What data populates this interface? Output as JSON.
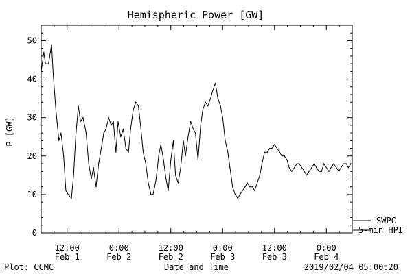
{
  "chart_data": {
    "type": "line",
    "title": "Hemispheric Power [GW]",
    "xlabel": "Date and Time",
    "ylabel": "P [GW]",
    "ylim": [
      0,
      54
    ],
    "yticks": [
      0,
      10,
      20,
      30,
      40,
      50
    ],
    "xlim_hours": [
      -18,
      54
    ],
    "xtick_hours": [
      -12,
      0,
      12,
      24,
      36,
      48
    ],
    "xtick_time_labels": [
      "12:00",
      "0:00",
      "12:00",
      "0:00",
      "12:00",
      "0:00"
    ],
    "xtick_date_labels": [
      "Feb 1",
      "Feb 2",
      "Feb 2",
      "Feb 3",
      "Feb 3",
      "Feb 4"
    ],
    "grid": false,
    "series": [
      {
        "name": "5-min HPI",
        "x_hours": [
          -18,
          -17.4,
          -17,
          -16.3,
          -15.6,
          -15.2,
          -14.6,
          -13.9,
          -13.4,
          -12.8,
          -12.3,
          -11.7,
          -11,
          -10.5,
          -10,
          -9.4,
          -8.9,
          -8.3,
          -7.6,
          -7,
          -6.4,
          -5.9,
          -5.3,
          -4.7,
          -4.1,
          -3.5,
          -3,
          -2.4,
          -1.8,
          -1.3,
          -0.7,
          -0.2,
          0.4,
          1,
          1.6,
          2.2,
          2.7,
          3.3,
          3.9,
          4.5,
          5.1,
          5.6,
          6.2,
          6.8,
          7.4,
          7.9,
          8.6,
          9.2,
          9.7,
          10.3,
          10.9,
          11.4,
          12,
          12.6,
          13.1,
          13.7,
          14.3,
          14.9,
          15.4,
          16,
          16.6,
          17.2,
          17.7,
          18.3,
          18.9,
          19.4,
          20,
          20.6,
          21.2,
          21.7,
          22.3,
          22.9,
          23.5,
          24,
          24.6,
          25.2,
          25.7,
          26.3,
          26.9,
          27.5,
          28,
          28.6,
          29.2,
          29.7,
          30.3,
          30.9,
          31.4,
          32,
          32.6,
          33.1,
          33.7,
          34.3,
          34.9,
          35.4,
          36,
          36.6,
          37.2,
          37.7,
          38.3,
          38.9,
          39.4,
          40,
          40.6,
          41.2,
          41.7,
          42.3,
          42.9,
          43.4,
          44,
          44.6,
          45.2,
          45.7,
          46.3,
          46.9,
          47.4,
          48,
          48.6,
          49.1,
          49.7,
          50.3,
          50.9,
          51.4,
          52,
          52.6,
          53.1,
          53.7
        ],
        "values": [
          42,
          47,
          44,
          44,
          49,
          41,
          32,
          24,
          26,
          20,
          11,
          10,
          9,
          15,
          25,
          33,
          29,
          30,
          26,
          18,
          14,
          17,
          12,
          18,
          22,
          26,
          27,
          30,
          28,
          29,
          21,
          29,
          25,
          27,
          22,
          21,
          27,
          32,
          34,
          33,
          27,
          21,
          18,
          13,
          10,
          10,
          14,
          20,
          23,
          19,
          14,
          11,
          19,
          24,
          15,
          13,
          17,
          24,
          20,
          25,
          29,
          27,
          26,
          19,
          28,
          32,
          34,
          33,
          35,
          37,
          39,
          35,
          33,
          30,
          24,
          21,
          17,
          12,
          10,
          9,
          10,
          11,
          12,
          13,
          12,
          12,
          11,
          13,
          15,
          18,
          21,
          21,
          22,
          22,
          23,
          22,
          21,
          20,
          20,
          19,
          17,
          16,
          17,
          18,
          18,
          17,
          16,
          15,
          16,
          17,
          18,
          17,
          16,
          16,
          18,
          17,
          16,
          17,
          18,
          17,
          16,
          17,
          18,
          18,
          17,
          18
        ]
      },
      {
        "name": "SWPC",
        "values": []
      }
    ]
  },
  "footer": {
    "plot_credit": "Plot: CCMC",
    "timestamp": "2019/02/04 05:00:20"
  }
}
